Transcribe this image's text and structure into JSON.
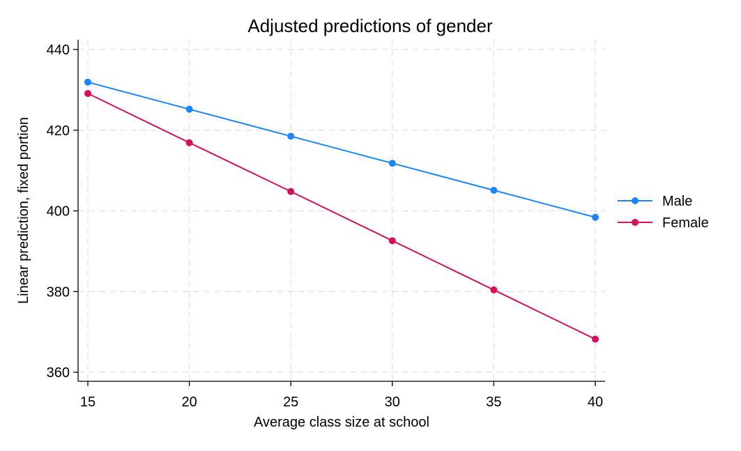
{
  "chart_data": {
    "type": "line",
    "title": "Adjusted predictions of gender",
    "xlabel": "Average class size at school",
    "ylabel": "Linear prediction, fixed portion",
    "x": [
      15,
      20,
      25,
      30,
      35,
      40
    ],
    "x_ticks": [
      "15",
      "20",
      "25",
      "30",
      "35",
      "40"
    ],
    "y_ticks": [
      "360",
      "380",
      "400",
      "420",
      "440"
    ],
    "xlim": [
      15,
      40
    ],
    "ylim": [
      360,
      440
    ],
    "grid": true,
    "legend_position": "right",
    "series": [
      {
        "name": "Male",
        "color": "#1a85ff",
        "values": [
          431.9,
          425.2,
          418.5,
          411.8,
          405.1,
          398.4
        ]
      },
      {
        "name": "Female",
        "color": "#d41159",
        "values": [
          429.1,
          416.9,
          404.8,
          392.6,
          380.4,
          368.2
        ]
      }
    ]
  }
}
